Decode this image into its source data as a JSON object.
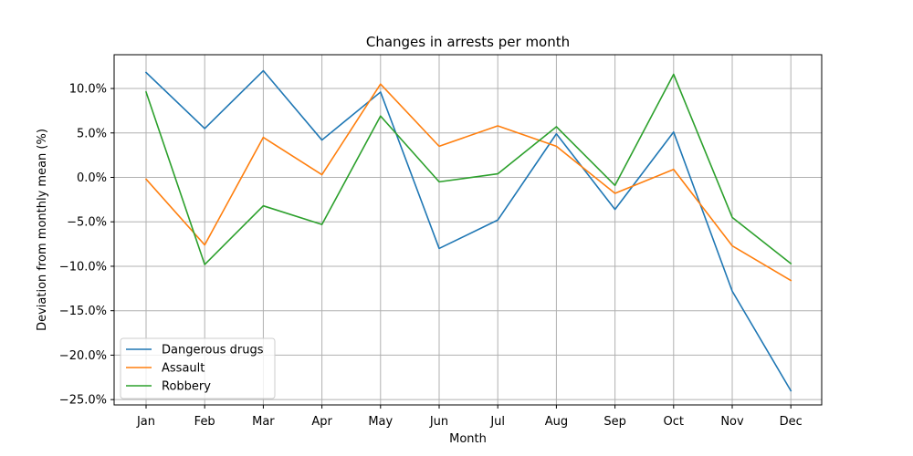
{
  "chart_data": {
    "type": "line",
    "title": "Changes in arrests per month",
    "xlabel": "Month",
    "ylabel": "Deviation from monthly mean (%)",
    "categories": [
      "Jan",
      "Feb",
      "Mar",
      "Apr",
      "May",
      "Jun",
      "Jul",
      "Aug",
      "Sep",
      "Oct",
      "Nov",
      "Dec"
    ],
    "ylim": [
      -25.6,
      13.8
    ],
    "yticks": [
      10.0,
      5.0,
      0.0,
      -5.0,
      -10.0,
      -15.0,
      -20.0,
      -25.0
    ],
    "ytick_labels": [
      "10.0%",
      "5.0%",
      "0.0%",
      "−5.0%",
      "−10.0%",
      "−15.0%",
      "−20.0%",
      "−25.0%"
    ],
    "grid": true,
    "legend": "lower-left",
    "series": [
      {
        "name": "Dangerous drugs",
        "color": "#1f77b4",
        "values": [
          11.8,
          5.5,
          12.0,
          4.2,
          9.6,
          -8.0,
          -4.8,
          4.9,
          -3.6,
          5.1,
          -12.8,
          -24.0
        ]
      },
      {
        "name": "Assault",
        "color": "#ff7f0e",
        "values": [
          -0.2,
          -7.6,
          4.5,
          0.3,
          10.5,
          3.5,
          5.8,
          3.5,
          -1.8,
          0.9,
          -7.7,
          -11.6
        ]
      },
      {
        "name": "Robbery",
        "color": "#2ca02c",
        "values": [
          9.6,
          -9.8,
          -3.2,
          -5.3,
          6.9,
          -0.5,
          0.4,
          5.7,
          -0.9,
          11.6,
          -4.5,
          -9.7
        ]
      }
    ]
  }
}
